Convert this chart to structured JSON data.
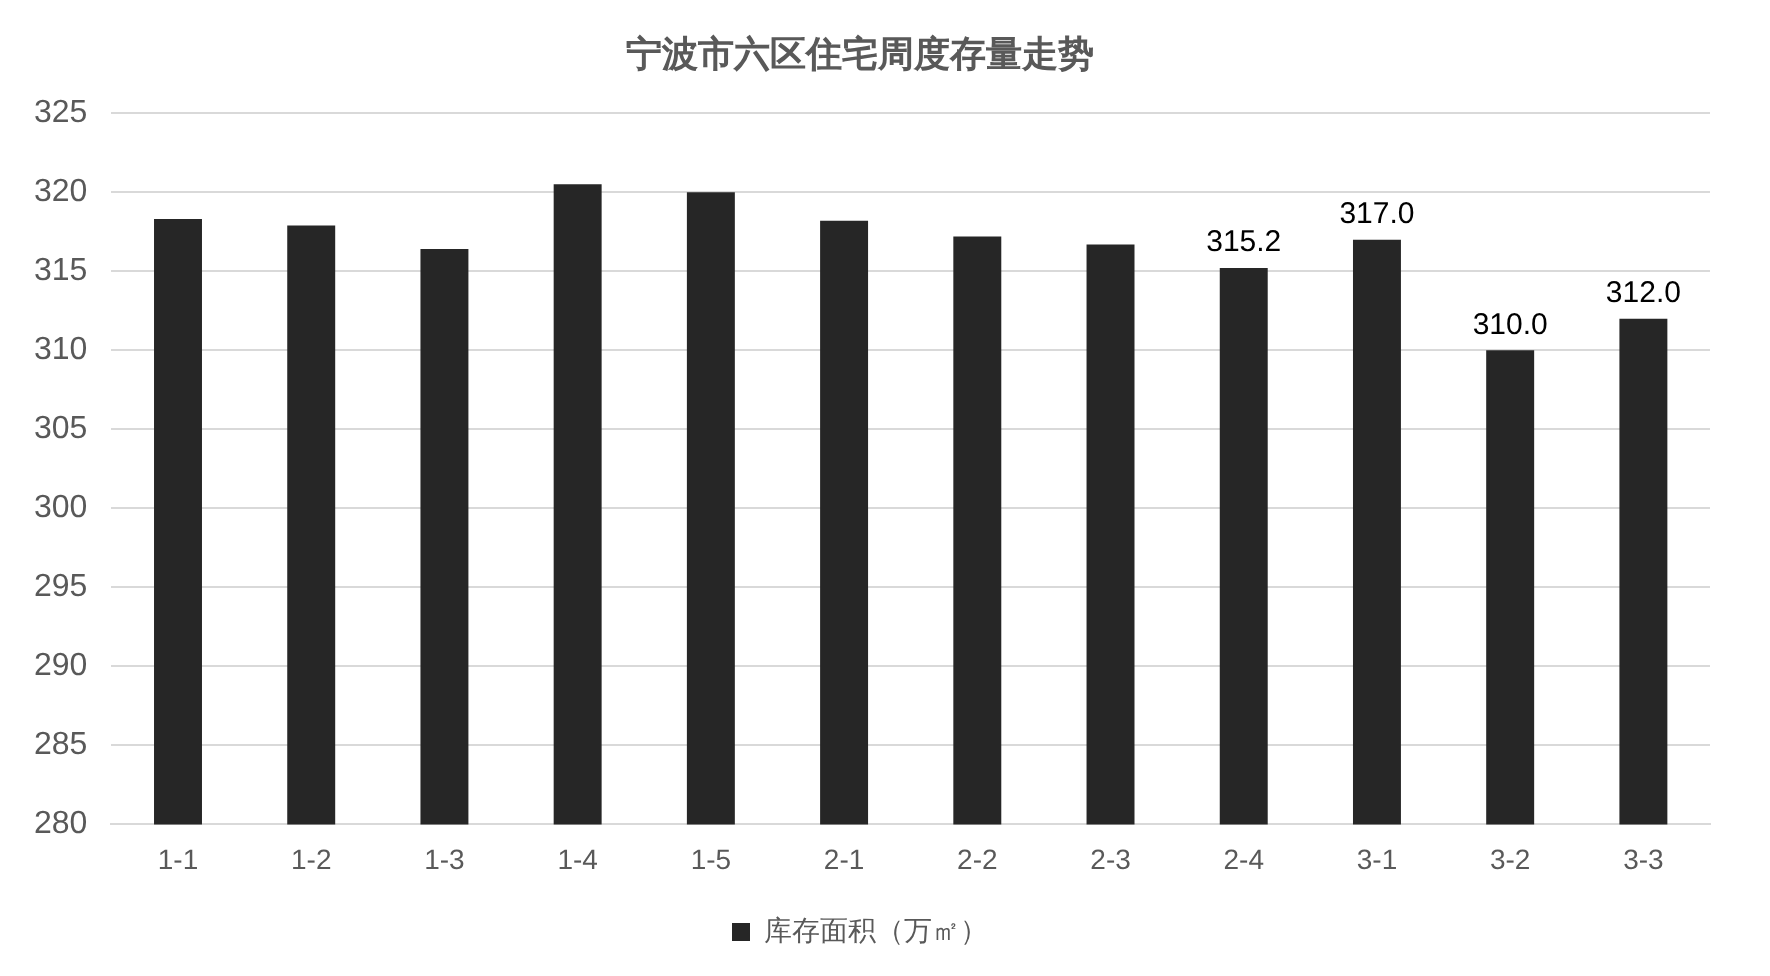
{
  "chart_data": {
    "type": "bar",
    "title": "宁波市六区住宅周度存量走势",
    "categories": [
      "1-1",
      "1-2",
      "1-3",
      "1-4",
      "1-5",
      "2-1",
      "2-2",
      "2-3",
      "2-4",
      "3-1",
      "3-2",
      "3-3"
    ],
    "series": [
      {
        "name": "库存面积（万㎡）",
        "color": "#262626",
        "values": [
          318.3,
          317.9,
          316.4,
          320.5,
          320.0,
          318.2,
          317.2,
          316.7,
          315.2,
          317.0,
          310.0,
          312.0
        ],
        "value_labels": [
          null,
          null,
          null,
          null,
          null,
          null,
          null,
          null,
          "315.2",
          "317.0",
          "310.0",
          "312.0"
        ]
      }
    ],
    "ylim": [
      280,
      325
    ],
    "yticks": [
      280,
      285,
      290,
      295,
      300,
      305,
      310,
      315,
      320,
      325
    ],
    "grid": "y",
    "legend": "bottom"
  }
}
